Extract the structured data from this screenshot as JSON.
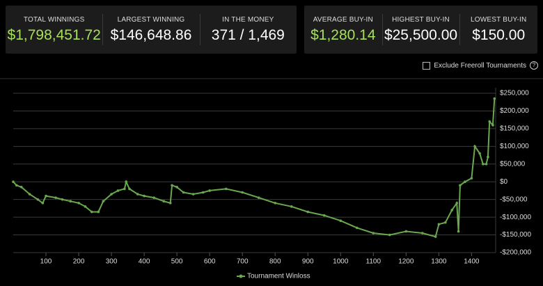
{
  "stats_panels": [
    [
      {
        "label": "TOTAL WINNINGS",
        "value": "$1,798,451.72",
        "color": "#a6e05a"
      },
      {
        "label": "LARGEST WINNING",
        "value": "$146,648.86",
        "color": "#ffffff"
      },
      {
        "label": "IN THE MONEY",
        "value": "371 / 1,469",
        "color": "#ffffff"
      }
    ],
    [
      {
        "label": "AVERAGE BUY-IN",
        "value": "$1,280.14",
        "color": "#a6e05a"
      },
      {
        "label": "HIGHEST BUY-IN",
        "value": "$25,500.00",
        "color": "#ffffff"
      },
      {
        "label": "LOWEST BUY-IN",
        "value": "$150.00",
        "color": "#ffffff"
      }
    ]
  ],
  "filter": {
    "label": "Exclude Freeroll Tournaments",
    "help_icon": "?"
  },
  "chart_data": {
    "type": "line",
    "xlim": [
      0,
      1480
    ],
    "xticks": [
      100,
      200,
      300,
      400,
      500,
      600,
      700,
      800,
      900,
      1000,
      1100,
      1200,
      1300,
      1400
    ],
    "ylim": [
      -200000,
      250000
    ],
    "yticks": [
      {
        "value": -200000,
        "label": "-$200,000"
      },
      {
        "value": -150000,
        "label": "-$150,000"
      },
      {
        "value": -100000,
        "label": "-$100,000"
      },
      {
        "value": -50000,
        "label": "-$50,000"
      },
      {
        "value": 0,
        "label": "$0"
      },
      {
        "value": 50000,
        "label": "$50,000"
      },
      {
        "value": 100000,
        "label": "$100,000"
      },
      {
        "value": 150000,
        "label": "$150,000"
      },
      {
        "value": 200000,
        "label": "$200,000"
      },
      {
        "value": 250000,
        "label": "$250,000"
      }
    ],
    "grid": true,
    "series": [
      {
        "name": "Tournament Winloss",
        "color": "#6aa84f",
        "x": [
          0,
          10,
          25,
          50,
          75,
          90,
          100,
          130,
          150,
          175,
          200,
          220,
          240,
          260,
          275,
          300,
          320,
          340,
          345,
          355,
          380,
          400,
          430,
          460,
          480,
          485,
          500,
          520,
          550,
          580,
          600,
          650,
          700,
          750,
          800,
          850,
          900,
          950,
          1000,
          1050,
          1100,
          1150,
          1200,
          1250,
          1290,
          1300,
          1320,
          1340,
          1355,
          1360,
          1365,
          1380,
          1400,
          1410,
          1425,
          1435,
          1445,
          1450,
          1455,
          1465,
          1470
        ],
        "values": [
          0,
          -10000,
          -15000,
          -35000,
          -50000,
          -60000,
          -40000,
          -45000,
          -50000,
          -55000,
          -60000,
          -70000,
          -85000,
          -85000,
          -55000,
          -35000,
          -25000,
          -20000,
          0,
          -20000,
          -35000,
          -40000,
          -45000,
          -55000,
          -60000,
          -10000,
          -15000,
          -30000,
          -35000,
          -30000,
          -25000,
          -20000,
          -30000,
          -45000,
          -60000,
          -70000,
          -85000,
          -95000,
          -110000,
          -130000,
          -145000,
          -150000,
          -140000,
          -145000,
          -155000,
          -120000,
          -115000,
          -80000,
          -60000,
          -140000,
          -10000,
          0,
          10000,
          100000,
          80000,
          50000,
          50000,
          70000,
          170000,
          160000,
          235000
        ]
      }
    ]
  }
}
